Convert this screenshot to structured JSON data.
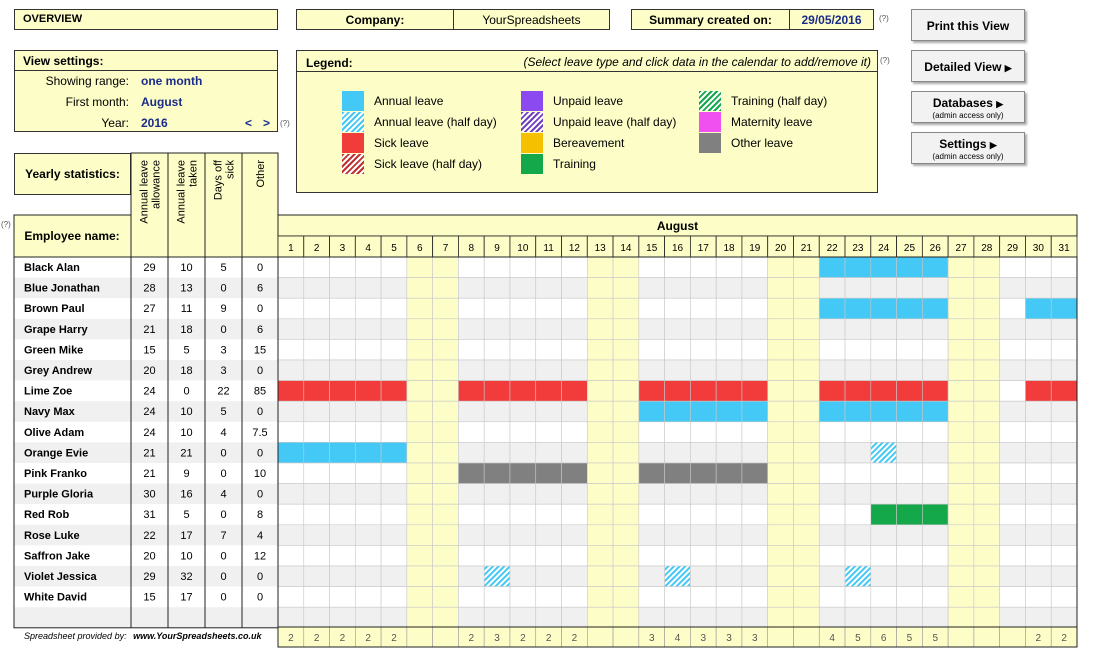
{
  "header": {
    "overview_label": "OVERVIEW",
    "company_label": "Company:",
    "company_value": "YourSpreadsheets",
    "summary_label": "Summary created on:",
    "summary_date": "29/05/2016",
    "help_mark": "(?)"
  },
  "buttons": {
    "print": "Print this View",
    "detailed": "Detailed View",
    "databases": "Databases",
    "databases_sub": "(admin access only)",
    "settings": "Settings",
    "settings_sub": "(admin access only)"
  },
  "view_settings": {
    "title": "View settings:",
    "range_label": "Showing range:",
    "range_value": "one month",
    "first_month_label": "First month:",
    "first_month_value": "August",
    "year_label": "Year:",
    "year_value": "2016",
    "prev": "<",
    "next": ">"
  },
  "legend": {
    "title": "Legend:",
    "hint": "(Select leave type and click data in the calendar to add/remove it)",
    "items": [
      {
        "label": "Annual leave",
        "color": "#44c8f5",
        "pattern": "solid"
      },
      {
        "label": "Annual leave (half day)",
        "color": "#44c8f5",
        "pattern": "hatch"
      },
      {
        "label": "Sick leave",
        "color": "#f23c3c",
        "pattern": "solid"
      },
      {
        "label": "Sick leave (half day)",
        "color": "#c03030",
        "pattern": "hatch"
      },
      {
        "label": "Unpaid leave",
        "color": "#8a4af0",
        "pattern": "solid"
      },
      {
        "label": "Unpaid leave (half day)",
        "color": "#7040c0",
        "pattern": "hatch"
      },
      {
        "label": "Bereavement",
        "color": "#f5c000",
        "pattern": "solid"
      },
      {
        "label": "Training",
        "color": "#14a84a",
        "pattern": "solid"
      },
      {
        "label": "Training (half day)",
        "color": "#14a84a",
        "pattern": "hatch"
      },
      {
        "label": "Maternity leave",
        "color": "#f050f0",
        "pattern": "solid"
      },
      {
        "label": "Other leave",
        "color": "#808080",
        "pattern": "solid"
      }
    ]
  },
  "stats": {
    "title": "Yearly statistics:",
    "employee_header": "Employee name:",
    "columns": [
      "Annual leave allowance",
      "Annual leave taken",
      "Days off sick",
      "Other"
    ]
  },
  "calendar": {
    "month": "August",
    "days": [
      "1",
      "2",
      "3",
      "4",
      "5",
      "6",
      "7",
      "8",
      "9",
      "10",
      "11",
      "12",
      "13",
      "14",
      "15",
      "16",
      "17",
      "18",
      "19",
      "20",
      "21",
      "22",
      "23",
      "24",
      "25",
      "26",
      "27",
      "28",
      "29",
      "30",
      "31"
    ],
    "weekend_days": [
      6,
      7,
      13,
      14,
      20,
      21,
      27,
      28
    ],
    "totals": [
      "2",
      "2",
      "2",
      "2",
      "2",
      "",
      "",
      "2",
      "3",
      "2",
      "2",
      "2",
      "",
      "",
      "3",
      "4",
      "3",
      "3",
      "3",
      "",
      "",
      "4",
      "5",
      "6",
      "5",
      "5",
      "",
      "",
      "",
      "2",
      "2"
    ]
  },
  "employees": [
    {
      "name": "Black Alan",
      "allowance": "29",
      "taken": "10",
      "sick": "5",
      "other": "0"
    },
    {
      "name": "Blue Jonathan",
      "allowance": "28",
      "taken": "13",
      "sick": "0",
      "other": "6"
    },
    {
      "name": "Brown Paul",
      "allowance": "27",
      "taken": "11",
      "sick": "9",
      "other": "0"
    },
    {
      "name": "Grape Harry",
      "allowance": "21",
      "taken": "18",
      "sick": "0",
      "other": "6"
    },
    {
      "name": "Green Mike",
      "allowance": "15",
      "taken": "5",
      "sick": "3",
      "other": "15"
    },
    {
      "name": "Grey Andrew",
      "allowance": "20",
      "taken": "18",
      "sick": "3",
      "other": "0"
    },
    {
      "name": "Lime Zoe",
      "allowance": "24",
      "taken": "0",
      "sick": "22",
      "other": "85"
    },
    {
      "name": "Navy Max",
      "allowance": "24",
      "taken": "10",
      "sick": "5",
      "other": "0"
    },
    {
      "name": "Olive Adam",
      "allowance": "24",
      "taken": "10",
      "sick": "4",
      "other": "7.5"
    },
    {
      "name": "Orange Evie",
      "allowance": "21",
      "taken": "21",
      "sick": "0",
      "other": "0"
    },
    {
      "name": "Pink Franko",
      "allowance": "21",
      "taken": "9",
      "sick": "0",
      "other": "10"
    },
    {
      "name": "Purple Gloria",
      "allowance": "30",
      "taken": "16",
      "sick": "4",
      "other": "0"
    },
    {
      "name": "Red Rob",
      "allowance": "31",
      "taken": "5",
      "sick": "0",
      "other": "8"
    },
    {
      "name": "Rose Luke",
      "allowance": "22",
      "taken": "17",
      "sick": "7",
      "other": "4"
    },
    {
      "name": "Saffron Jake",
      "allowance": "20",
      "taken": "10",
      "sick": "0",
      "other": "12"
    },
    {
      "name": "Violet Jessica",
      "allowance": "29",
      "taken": "32",
      "sick": "0",
      "other": "0"
    },
    {
      "name": "White David",
      "allowance": "15",
      "taken": "17",
      "sick": "0",
      "other": "0"
    }
  ],
  "leave_entries": [
    {
      "row": 0,
      "days": [
        22,
        23,
        24,
        25,
        26
      ],
      "type": "annual"
    },
    {
      "row": 2,
      "days": [
        22,
        23,
        24,
        25,
        26,
        30,
        31
      ],
      "type": "annual"
    },
    {
      "row": 6,
      "days": [
        1,
        2,
        3,
        4,
        5,
        8,
        9,
        10,
        11,
        12,
        15,
        16,
        17,
        18,
        19,
        22,
        23,
        24,
        25,
        26,
        30,
        31
      ],
      "type": "sick"
    },
    {
      "row": 7,
      "days": [
        15,
        16,
        17,
        18,
        19,
        22,
        23,
        24,
        25,
        26
      ],
      "type": "annual"
    },
    {
      "row": 9,
      "days": [
        1,
        2,
        3,
        4,
        5
      ],
      "type": "annual"
    },
    {
      "row": 9,
      "days": [
        24
      ],
      "type": "annual_half"
    },
    {
      "row": 10,
      "days": [
        8,
        9,
        10,
        11,
        12,
        15,
        16,
        17,
        18,
        19
      ],
      "type": "other"
    },
    {
      "row": 12,
      "days": [
        24,
        25,
        26
      ],
      "type": "training"
    },
    {
      "row": 15,
      "days": [
        9,
        16,
        23
      ],
      "type": "annual_half"
    }
  ],
  "leave_colors": {
    "annual": "#44c8f5",
    "annual_half": "#44c8f5",
    "sick": "#f23c3c",
    "other": "#808080",
    "training": "#14a84a"
  },
  "footer": {
    "provided_by": "Spreadsheet provided by:",
    "url": "www.YourSpreadsheets.co.uk"
  }
}
